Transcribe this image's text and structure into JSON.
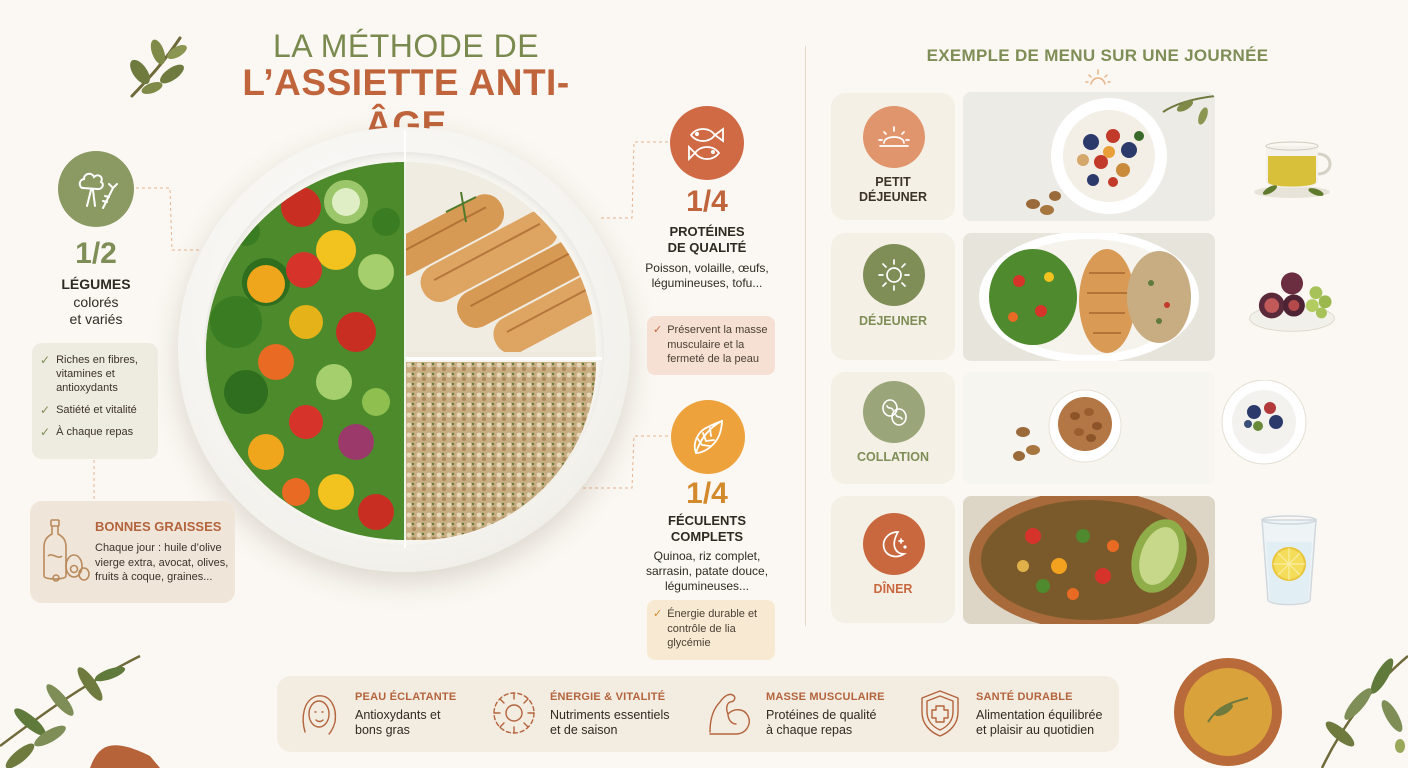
{
  "title": {
    "line1": "LA MÉTHODE DE",
    "line2": "L’ASSIETTE ANTI-ÂGE"
  },
  "vegetables": {
    "icon": "broccoli-carrot-icon",
    "fraction": "1/2",
    "line1": "LÉGUMES",
    "line2": "colorés",
    "line3": "et variés",
    "benefits": [
      "Riches en fibres, vitamines et antioxydants",
      "Satiété et vitalité",
      "À chaque repas"
    ]
  },
  "fats": {
    "icon": "oil-bottle-icon",
    "title": "BONNES GRAISSES",
    "description": "Chaque jour : huile d’olive vierge extra, avocat, olives, fruits à coque, graines..."
  },
  "proteins": {
    "icon": "fish-icon",
    "fraction": "1/4",
    "title_line1": "PROTÉINES",
    "title_line2": "DE QUALITÉ",
    "description": "Poisson, volaille, œufs, légumineuses, tofu...",
    "benefit": "Préservent la masse musculaire et la fermeté de la peau"
  },
  "starches": {
    "icon": "wheat-leaf-icon",
    "fraction": "1/4",
    "title_line1": "FÉCULENTS",
    "title_line2": "COMPLETS",
    "description": "Quinoa, riz complet, sarrasin, patate douce, légumineuses...",
    "benefit": "Énergie durable et contrôle de lia glycémie"
  },
  "menu": {
    "title": "EXEMPLE DE MENU SUR UNE JOURNÉE",
    "meals": [
      {
        "label_line1": "PETIT",
        "label_line2": "DÉJEUNER",
        "icon": "sunrise-icon",
        "color": "#e0956c",
        "side": "tea-cup"
      },
      {
        "label_line1": "DÉJEUNER",
        "label_line2": "",
        "icon": "sun-icon",
        "color": "#7f8d56",
        "side": "figs-grapes"
      },
      {
        "label_line1": "COLLATION",
        "label_line2": "",
        "icon": "nuts-icon",
        "color": "#9aa57a",
        "side": "yogurt-bowl"
      },
      {
        "label_line1": "DÎNER",
        "label_line2": "",
        "icon": "moon-stars-icon",
        "color": "#c9683f",
        "side": "lemon-water"
      }
    ]
  },
  "benefits_bar": [
    {
      "icon": "face-icon",
      "title": "PEAU ÉCLATANTE",
      "line1": "Antioxydants et",
      "line2": "bons gras"
    },
    {
      "icon": "energy-gear-icon",
      "title": "ÉNERGIE & VITALITÉ",
      "line1": "Nutriments essentiels",
      "line2": "et de saison"
    },
    {
      "icon": "muscle-arm-icon",
      "title": "MASSE MUSCULAIRE",
      "line1": "Protéines de qualité",
      "line2": "à chaque repas"
    },
    {
      "icon": "shield-cross-icon",
      "title": "SANTÉ DURABLE",
      "line1": "Alimentation équilibrée",
      "line2": "et plaisir au quotidien"
    }
  ],
  "colors": {
    "olive": "#7f8d56",
    "terracotta": "#c0643c",
    "amber": "#eda23c",
    "cream": "#fbf8f3"
  }
}
